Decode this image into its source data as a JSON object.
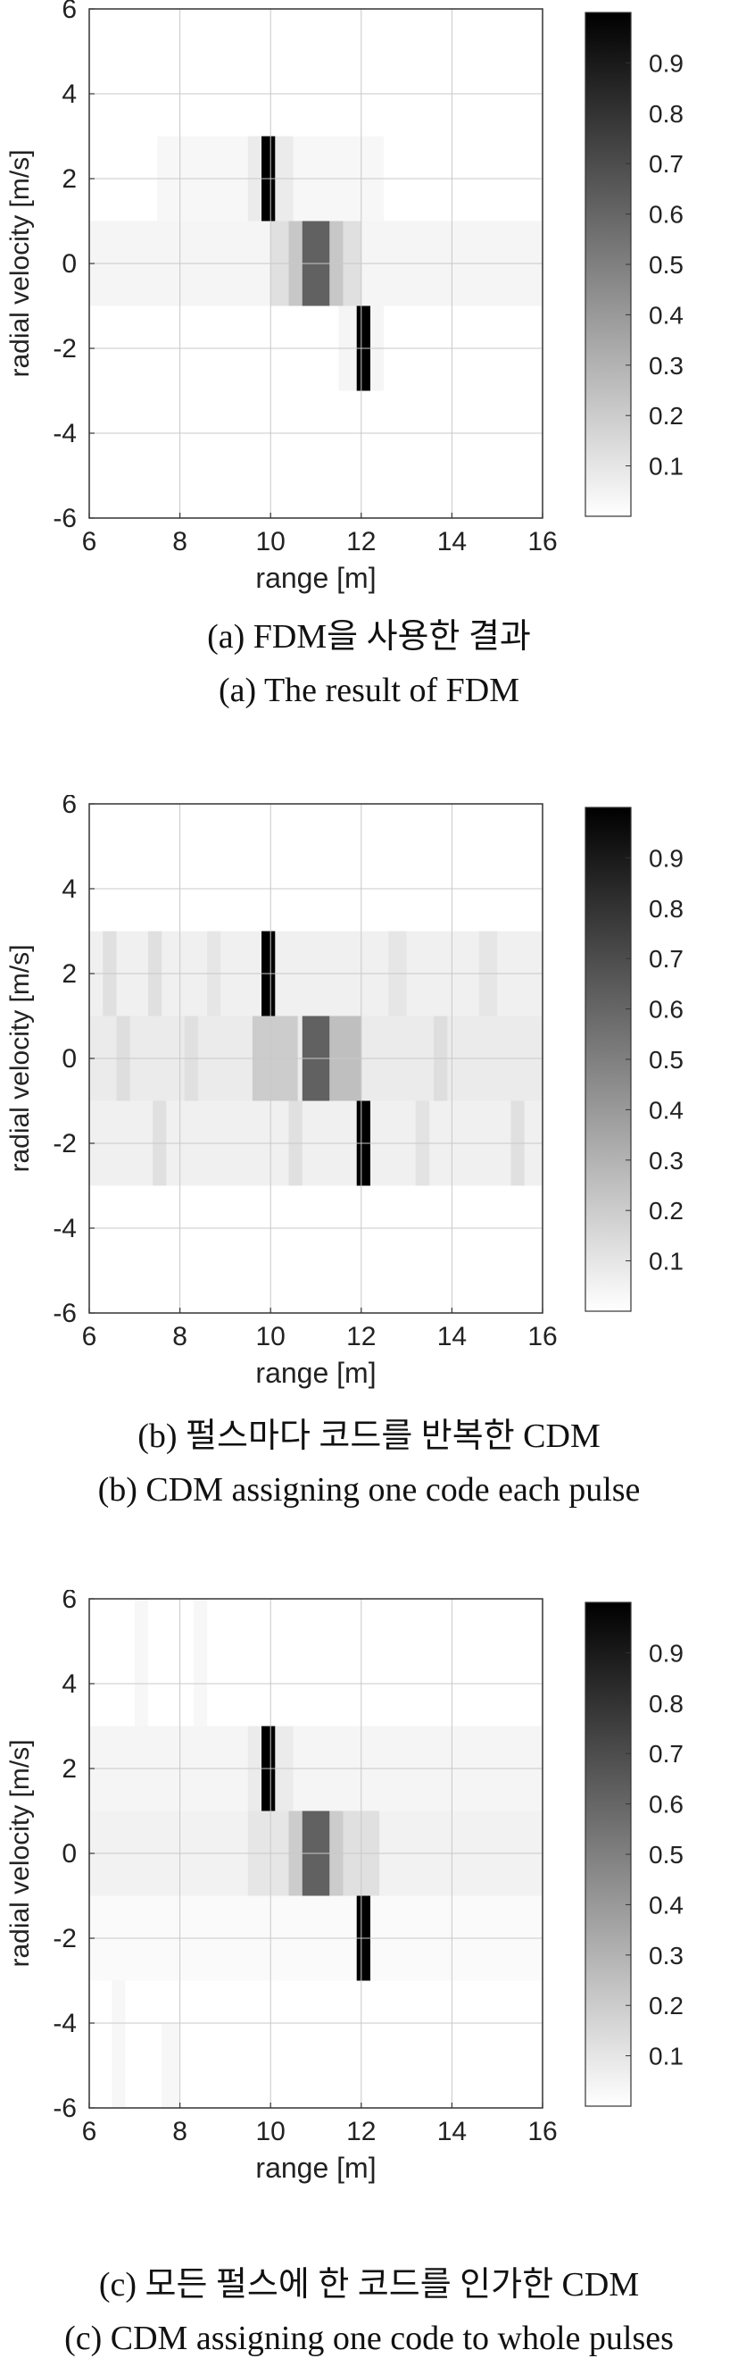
{
  "chart_data": [
    {
      "type": "heatmap",
      "xlabel": "range [m]",
      "ylabel": "radial velocity [m/s]",
      "xlim": [
        6,
        16
      ],
      "ylim": [
        -6,
        6
      ],
      "xticks": [
        6,
        8,
        10,
        12,
        14,
        16
      ],
      "yticks": [
        -6,
        -4,
        -2,
        0,
        2,
        4,
        6
      ],
      "colorbar_ticks": [
        0.1,
        0.2,
        0.3,
        0.4,
        0.5,
        0.6,
        0.7,
        0.8,
        0.9
      ],
      "colorbar_range": [
        0,
        1
      ],
      "grid": true,
      "caption_ko": "(a) FDM을 사용한 결과",
      "caption_en": "(a) The result of FDM",
      "targets": [
        {
          "range": 10,
          "velocity": 2,
          "value": 1.0
        },
        {
          "range": 11,
          "velocity": 0,
          "value": 0.6
        },
        {
          "range": 12,
          "velocity": -2,
          "value": 1.0
        }
      ],
      "cells": [
        {
          "r0": 7.5,
          "r1": 12.5,
          "v0": 1,
          "v1": 3,
          "value": 0.03
        },
        {
          "r0": 9.5,
          "r1": 10.5,
          "v0": 1,
          "v1": 3,
          "value": 0.08
        },
        {
          "r0": 6,
          "r1": 16,
          "v0": -1,
          "v1": 1,
          "value": 0.04
        },
        {
          "r0": 10,
          "r1": 12,
          "v0": -1,
          "v1": 1,
          "value": 0.12
        },
        {
          "r0": 10.4,
          "r1": 11.6,
          "v0": -1,
          "v1": 1,
          "value": 0.22
        },
        {
          "r0": 11.5,
          "r1": 12.5,
          "v0": -3,
          "v1": -1,
          "value": 0.04
        },
        {
          "r0": 9.8,
          "r1": 10.1,
          "v0": 1,
          "v1": 3,
          "value": 1.0
        },
        {
          "r0": 10.7,
          "r1": 11.3,
          "v0": -1,
          "v1": 1,
          "value": 0.62
        },
        {
          "r0": 11.9,
          "r1": 12.2,
          "v0": -3,
          "v1": -1,
          "value": 1.0
        }
      ]
    },
    {
      "type": "heatmap",
      "xlabel": "range [m]",
      "ylabel": "radial velocity [m/s]",
      "xlim": [
        6,
        16
      ],
      "ylim": [
        -6,
        6
      ],
      "xticks": [
        6,
        8,
        10,
        12,
        14,
        16
      ],
      "yticks": [
        -6,
        -4,
        -2,
        0,
        2,
        4,
        6
      ],
      "colorbar_ticks": [
        0.1,
        0.2,
        0.3,
        0.4,
        0.5,
        0.6,
        0.7,
        0.8,
        0.9
      ],
      "colorbar_range": [
        0,
        1
      ],
      "grid": true,
      "caption_ko": "(b) 펄스마다 코드를 반복한 CDM",
      "caption_en": "(b) CDM assigning one code each pulse",
      "targets": [
        {
          "range": 10,
          "velocity": 2,
          "value": 1.0
        },
        {
          "range": 11,
          "velocity": 0,
          "value": 0.6
        },
        {
          "range": 12,
          "velocity": -2,
          "value": 1.0
        }
      ],
      "cells": [
        {
          "r0": 6,
          "r1": 16,
          "v0": 1,
          "v1": 3,
          "value": 0.06
        },
        {
          "r0": 6,
          "r1": 16,
          "v0": -1,
          "v1": 1,
          "value": 0.08
        },
        {
          "r0": 6,
          "r1": 16,
          "v0": -3,
          "v1": -1,
          "value": 0.06
        },
        {
          "r0": 6.3,
          "r1": 6.6,
          "v0": 1,
          "v1": 3,
          "value": 0.12
        },
        {
          "r0": 7.3,
          "r1": 7.6,
          "v0": 1,
          "v1": 3,
          "value": 0.12
        },
        {
          "r0": 8.6,
          "r1": 8.9,
          "v0": 1,
          "v1": 3,
          "value": 0.1
        },
        {
          "r0": 12.6,
          "r1": 13.0,
          "v0": 1,
          "v1": 3,
          "value": 0.1
        },
        {
          "r0": 14.6,
          "r1": 15.0,
          "v0": 1,
          "v1": 3,
          "value": 0.1
        },
        {
          "r0": 6.6,
          "r1": 6.9,
          "v0": -1,
          "v1": 1,
          "value": 0.13
        },
        {
          "r0": 8.1,
          "r1": 8.4,
          "v0": -1,
          "v1": 1,
          "value": 0.12
        },
        {
          "r0": 9.6,
          "r1": 10.6,
          "v0": -1,
          "v1": 1,
          "value": 0.2
        },
        {
          "r0": 11.3,
          "r1": 12.0,
          "v0": -1,
          "v1": 1,
          "value": 0.25
        },
        {
          "r0": 13.6,
          "r1": 13.9,
          "v0": -1,
          "v1": 1,
          "value": 0.13
        },
        {
          "r0": 7.4,
          "r1": 7.7,
          "v0": -3,
          "v1": -1,
          "value": 0.12
        },
        {
          "r0": 10.4,
          "r1": 10.7,
          "v0": -3,
          "v1": -1,
          "value": 0.12
        },
        {
          "r0": 13.2,
          "r1": 13.5,
          "v0": -3,
          "v1": -1,
          "value": 0.11
        },
        {
          "r0": 15.3,
          "r1": 15.6,
          "v0": -3,
          "v1": -1,
          "value": 0.12
        },
        {
          "r0": 9.8,
          "r1": 10.1,
          "v0": 1,
          "v1": 3,
          "value": 1.0
        },
        {
          "r0": 10.7,
          "r1": 11.3,
          "v0": -1,
          "v1": 1,
          "value": 0.62
        },
        {
          "r0": 11.9,
          "r1": 12.2,
          "v0": -3,
          "v1": -1,
          "value": 1.0
        }
      ]
    },
    {
      "type": "heatmap",
      "xlabel": "range [m]",
      "ylabel": "radial velocity [m/s]",
      "xlim": [
        6,
        16
      ],
      "ylim": [
        -6,
        6
      ],
      "xticks": [
        6,
        8,
        10,
        12,
        14,
        16
      ],
      "yticks": [
        -6,
        -4,
        -2,
        0,
        2,
        4,
        6
      ],
      "colorbar_ticks": [
        0.1,
        0.2,
        0.3,
        0.4,
        0.5,
        0.6,
        0.7,
        0.8,
        0.9
      ],
      "colorbar_range": [
        0,
        1
      ],
      "grid": true,
      "caption_ko": "(c) 모든 펄스에 한 코드를 인가한 CDM",
      "caption_en": "(c) CDM assigning one code to whole pulses",
      "targets": [
        {
          "range": 10,
          "velocity": 2,
          "value": 1.0
        },
        {
          "range": 11,
          "velocity": 0,
          "value": 0.6
        },
        {
          "range": 12,
          "velocity": -2,
          "value": 1.0
        }
      ],
      "cells": [
        {
          "r0": 6,
          "r1": 16,
          "v0": 1,
          "v1": 3,
          "value": 0.04
        },
        {
          "r0": 6,
          "r1": 16,
          "v0": -1,
          "v1": 1,
          "value": 0.05
        },
        {
          "r0": 6,
          "r1": 16,
          "v0": -3,
          "v1": -1,
          "value": 0.02
        },
        {
          "r0": 7.0,
          "r1": 7.3,
          "v0": 3,
          "v1": 6,
          "value": 0.03
        },
        {
          "r0": 8.3,
          "r1": 8.6,
          "v0": 3,
          "v1": 6,
          "value": 0.03
        },
        {
          "r0": 6.5,
          "r1": 6.8,
          "v0": -6,
          "v1": -3,
          "value": 0.03
        },
        {
          "r0": 7.6,
          "r1": 8.0,
          "v0": -6,
          "v1": -4,
          "value": 0.03
        },
        {
          "r0": 9.5,
          "r1": 11.8,
          "v0": -1,
          "v1": 1,
          "value": 0.1
        },
        {
          "r0": 10.4,
          "r1": 11.6,
          "v0": -1,
          "v1": 1,
          "value": 0.2
        },
        {
          "r0": 11.6,
          "r1": 12.4,
          "v0": -1,
          "v1": 1,
          "value": 0.12
        },
        {
          "r0": 9.5,
          "r1": 10.5,
          "v0": 1,
          "v1": 3,
          "value": 0.08
        },
        {
          "r0": 9.8,
          "r1": 10.1,
          "v0": 1,
          "v1": 3,
          "value": 1.0
        },
        {
          "r0": 10.7,
          "r1": 11.3,
          "v0": -1,
          "v1": 1,
          "value": 0.62
        },
        {
          "r0": 11.9,
          "r1": 12.2,
          "v0": -3,
          "v1": -1,
          "value": 1.0
        }
      ]
    }
  ]
}
